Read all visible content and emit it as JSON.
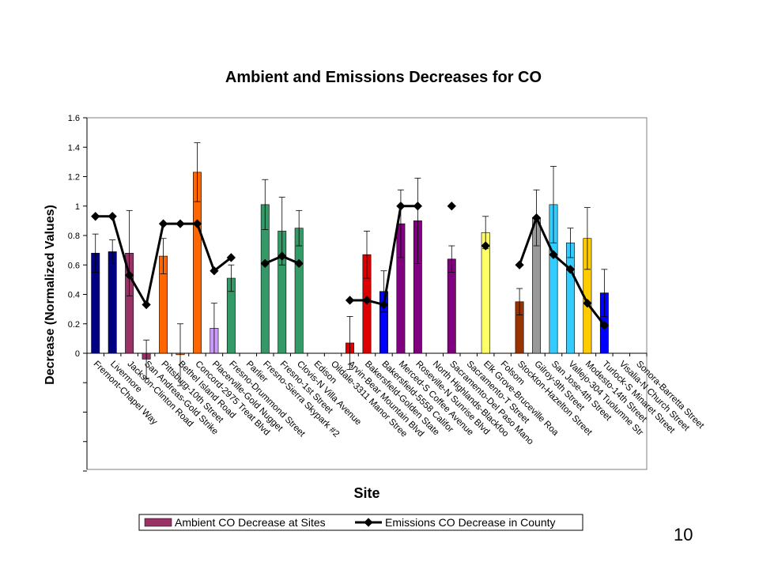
{
  "slide_number": "10",
  "chart_data": {
    "type": "bar",
    "title": "Ambient and Emissions Decreases for CO",
    "xlabel": "Site",
    "ylabel": "Decrease (Normalized Values)",
    "ylim": [
      -0.8,
      1.6
    ],
    "yticks": [
      "1.6",
      "1.4",
      "1.2",
      "1",
      "0.8",
      "0.6",
      "0.4",
      "0.2",
      "0"
    ],
    "grid": false,
    "legend_placement": "bottom",
    "categories": [
      "Fremont-Chapel Way",
      "Livermore",
      "Jackson-Clinton Road",
      "San Andreas-Gold Strike",
      "Pittsburg-10th Street",
      "Bethel Island Road",
      "Concord-2975 Treat Blvd",
      "Placerville-Gold Nugget",
      "Fresno-Drummond Street",
      "Parlier",
      "Fresno-Sierra Skypark #2",
      "Fresno-1st Street",
      "Clovis-N Villa Avenue",
      "Edison",
      "Oildale-3311 Manor Stree",
      "Arvin-Bear Mountain Blvd",
      "Bakersfield-Golden State",
      "Bakersfield-5558 Califor",
      "Merced-S Coffee Avenue",
      "Roseville-N Sunrise Blvd",
      "North Highlands-Blackfoo",
      "Sacramento-Del Paso Mano",
      "Sacramento-T Street",
      "Elk Grove-Bruceville Roa",
      "Folsom",
      "Stockton-Hazelton Street",
      "Gilroy-9th Street",
      "San Jose-4th Street",
      "Vallejo-304 Tuolumne Str",
      "Modesto-14th Street",
      "Turlock-S Minaret Street",
      "Visalia-N Church Street",
      "Sonora-Barretta Street"
    ],
    "bar_values": [
      0.68,
      0.69,
      0.68,
      -0.04,
      0.66,
      -0.01,
      1.23,
      0.17,
      0.51,
      null,
      1.01,
      0.83,
      0.85,
      null,
      null,
      0.07,
      0.67,
      0.42,
      0.88,
      0.9,
      null,
      0.64,
      null,
      0.82,
      null,
      0.35,
      0.92,
      1.01,
      0.75,
      0.78,
      0.41,
      null,
      null
    ],
    "bar_errors": [
      0.13,
      0.08,
      0.29,
      0.13,
      0.12,
      0.21,
      0.2,
      0.17,
      0.09,
      null,
      0.17,
      0.23,
      0.12,
      null,
      null,
      0.18,
      0.16,
      0.14,
      0.23,
      0.29,
      null,
      0.09,
      null,
      0.11,
      null,
      0.09,
      0.19,
      0.26,
      0.1,
      0.21,
      0.16,
      null,
      null
    ],
    "bar_colors": [
      "#000080",
      "#000080",
      "#993366",
      "#993366",
      "#ff6600",
      "#ff6600",
      "#ff6600",
      "#cc99ff",
      "#339966",
      null,
      "#339966",
      "#339966",
      "#339966",
      null,
      null,
      "#dd0000",
      "#dd0000",
      "#0000ff",
      "#800080",
      "#800080",
      null,
      "#800080",
      null,
      "#ffff66",
      null,
      "#993300",
      "#999999",
      "#33ccff",
      "#33ccff",
      "#ffcc00",
      "#0000ff",
      null,
      null
    ],
    "bar_slots": [
      0,
      1,
      2,
      3,
      4,
      5,
      6,
      7,
      8,
      9,
      10,
      11,
      12,
      13,
      14,
      15,
      16,
      17,
      18,
      19,
      20,
      21,
      22,
      23,
      24,
      25,
      26,
      27,
      28,
      29,
      30,
      31,
      32
    ],
    "line_values": [
      0.93,
      0.93,
      0.53,
      0.33,
      0.88,
      0.88,
      0.88,
      0.56,
      0.65,
      null,
      0.61,
      0.66,
      0.61,
      null,
      null,
      0.36,
      0.36,
      0.33,
      1.0,
      1.0,
      null,
      1.0,
      null,
      0.73,
      null,
      0.6,
      0.92,
      0.67,
      0.57,
      0.34,
      0.19,
      null,
      null
    ],
    "series": [
      {
        "name": "Ambient CO Decrease at Sites",
        "kind": "bar",
        "color": "#993366"
      },
      {
        "name": "Emissions CO Decrease in County",
        "kind": "line",
        "color": "#000000"
      }
    ]
  }
}
